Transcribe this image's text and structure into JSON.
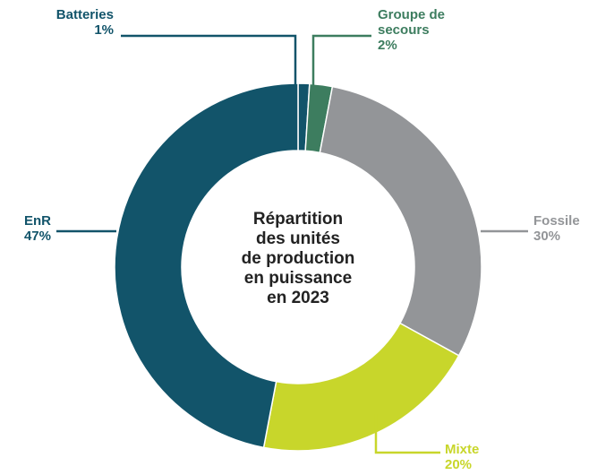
{
  "chart_data": {
    "type": "donut",
    "title": [
      "Répartition",
      "des unités",
      "de production",
      "en puissance",
      "en 2023"
    ],
    "categories": [
      "Batteries",
      "Groupe de secours",
      "Fossile",
      "Mixte",
      "EnR"
    ],
    "values": [
      1,
      2,
      30,
      20,
      47
    ],
    "value_labels": [
      "1%",
      "2%",
      "30%",
      "20%",
      "47%"
    ],
    "colors": [
      "#12546a",
      "#3d7d5f",
      "#939598",
      "#c8d62b",
      "#12546a"
    ]
  }
}
